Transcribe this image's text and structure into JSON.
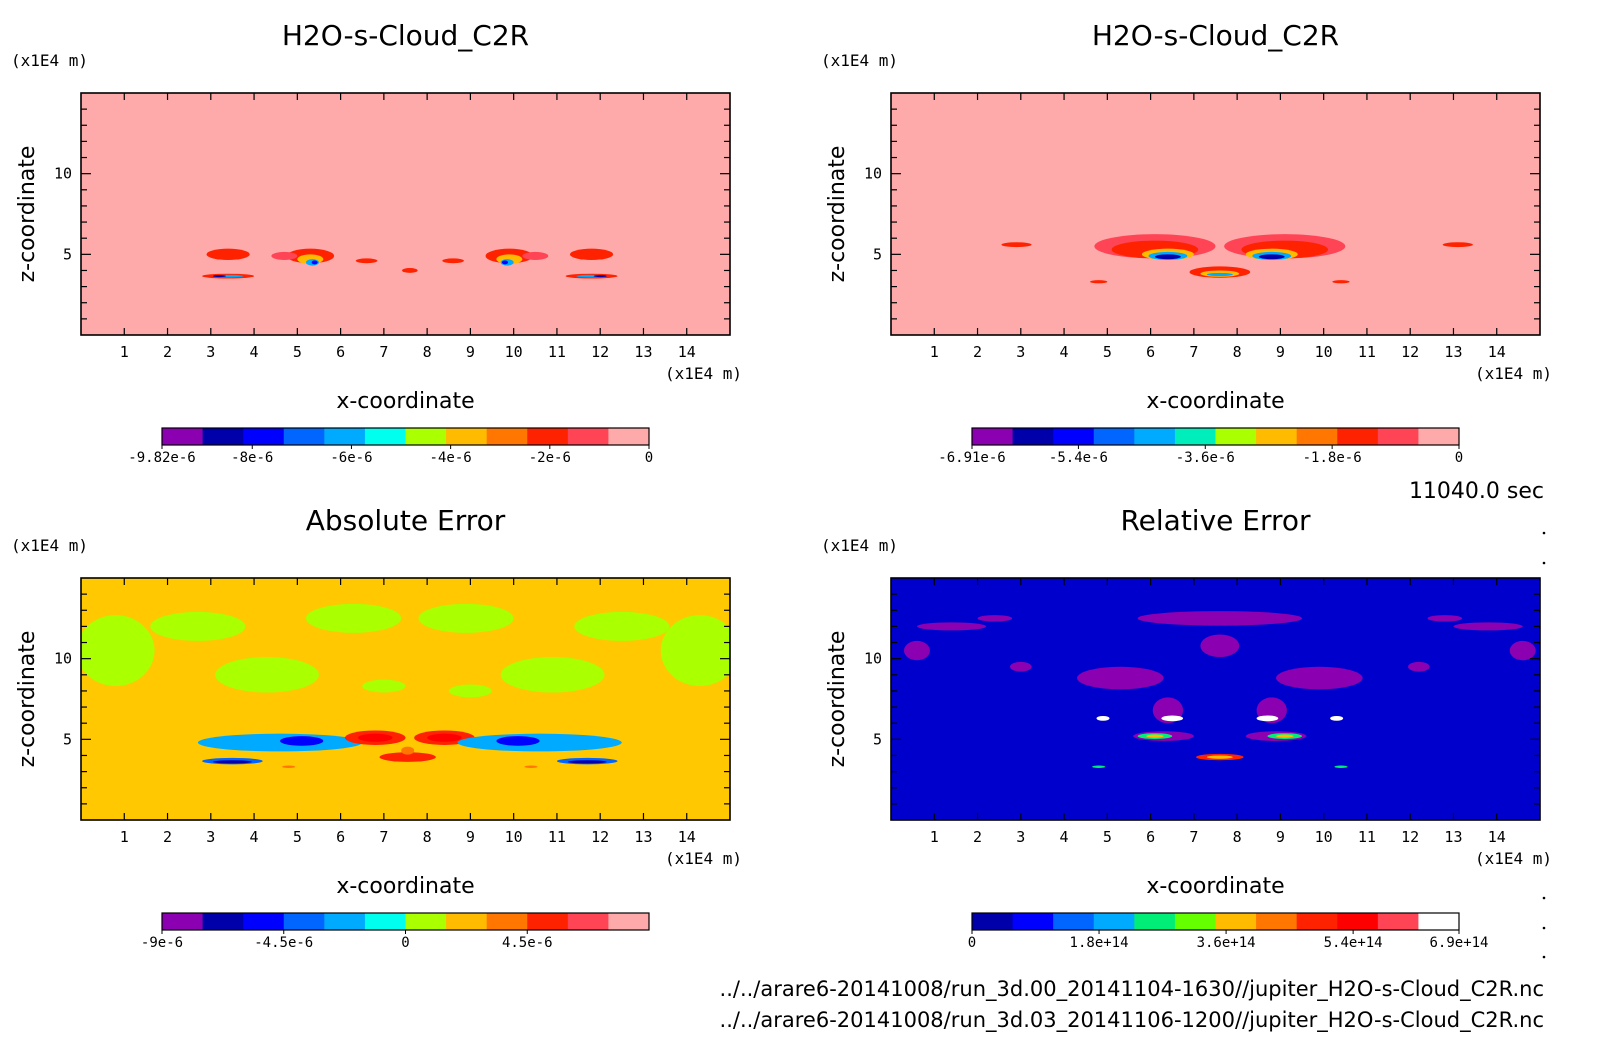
{
  "chart_data": [
    {
      "type": "heatmap",
      "title": "H2O-s-Cloud_C2R",
      "xlabel": "x-coordinate",
      "ylabel": "z-coordinate",
      "x_unit": "(x1E4 m)",
      "y_unit": "(x1E4 m)",
      "xlim": [
        0,
        15
      ],
      "ylim": [
        0,
        15
      ],
      "x_ticks": [
        "1",
        "2",
        "3",
        "4",
        "5",
        "6",
        "7",
        "8",
        "9",
        "10",
        "11",
        "12",
        "13",
        "14"
      ],
      "y_ticks": [
        "5",
        "10"
      ],
      "background": "#FFAAAA",
      "colorbar": {
        "colors": [
          "#8B00B0",
          "#0000AA",
          "#0000FF",
          "#0066FF",
          "#00AAFF",
          "#00FFEE",
          "#AAFF00",
          "#FFBB00",
          "#FF7700",
          "#FF2200",
          "#FF4455",
          "#FFAAAA"
        ],
        "labels": [
          {
            "text": "-9.82e-6",
            "value": -9.82e-06
          },
          {
            "text": "-8e-6",
            "value": -8e-06
          },
          {
            "text": "-6e-6",
            "value": -6e-06
          },
          {
            "text": "-4e-6",
            "value": -4e-06
          },
          {
            "text": "-2e-6",
            "value": -2e-06
          },
          {
            "text": "0",
            "value": 0
          }
        ],
        "range": [
          -9.82e-06,
          0
        ]
      },
      "blobs": [
        {
          "x": 3.4,
          "z": 5.0,
          "rx": 0.5,
          "rz": 0.35,
          "c": "#FF2200"
        },
        {
          "x": 3.4,
          "z": 3.65,
          "rx": 0.6,
          "rz": 0.15,
          "c": "#FF2200"
        },
        {
          "x": 3.4,
          "z": 3.65,
          "rx": 0.35,
          "rz": 0.08,
          "c": "#00AAFF"
        },
        {
          "x": 3.2,
          "z": 3.65,
          "rx": 0.15,
          "rz": 0.06,
          "c": "#0000AA"
        },
        {
          "x": 5.3,
          "z": 4.9,
          "rx": 0.55,
          "rz": 0.45,
          "c": "#FF2200"
        },
        {
          "x": 4.7,
          "z": 4.9,
          "rx": 0.3,
          "rz": 0.25,
          "c": "#FF4455"
        },
        {
          "x": 5.3,
          "z": 4.7,
          "rx": 0.3,
          "rz": 0.3,
          "c": "#FFBB00"
        },
        {
          "x": 5.35,
          "z": 4.5,
          "rx": 0.15,
          "rz": 0.2,
          "c": "#00AAFF"
        },
        {
          "x": 5.4,
          "z": 4.5,
          "rx": 0.07,
          "rz": 0.12,
          "c": "#0000FF"
        },
        {
          "x": 6.6,
          "z": 4.6,
          "rx": 0.25,
          "rz": 0.15,
          "c": "#FF2200"
        },
        {
          "x": 7.6,
          "z": 4.0,
          "rx": 0.18,
          "rz": 0.15,
          "c": "#FF2200"
        },
        {
          "x": 8.6,
          "z": 4.6,
          "rx": 0.25,
          "rz": 0.15,
          "c": "#FF2200"
        },
        {
          "x": 9.9,
          "z": 4.9,
          "rx": 0.55,
          "rz": 0.45,
          "c": "#FF2200"
        },
        {
          "x": 10.5,
          "z": 4.9,
          "rx": 0.3,
          "rz": 0.25,
          "c": "#FF4455"
        },
        {
          "x": 9.9,
          "z": 4.7,
          "rx": 0.3,
          "rz": 0.3,
          "c": "#FFBB00"
        },
        {
          "x": 9.85,
          "z": 4.5,
          "rx": 0.15,
          "rz": 0.2,
          "c": "#00AAFF"
        },
        {
          "x": 9.8,
          "z": 4.5,
          "rx": 0.07,
          "rz": 0.12,
          "c": "#0000FF"
        },
        {
          "x": 11.8,
          "z": 5.0,
          "rx": 0.5,
          "rz": 0.35,
          "c": "#FF2200"
        },
        {
          "x": 11.8,
          "z": 3.65,
          "rx": 0.6,
          "rz": 0.15,
          "c": "#FF2200"
        },
        {
          "x": 11.8,
          "z": 3.65,
          "rx": 0.35,
          "rz": 0.08,
          "c": "#00AAFF"
        },
        {
          "x": 12.0,
          "z": 3.65,
          "rx": 0.15,
          "rz": 0.06,
          "c": "#0000AA"
        }
      ]
    },
    {
      "type": "heatmap",
      "title": "H2O-s-Cloud_C2R",
      "xlabel": "x-coordinate",
      "ylabel": "z-coordinate",
      "x_unit": "(x1E4 m)",
      "y_unit": "(x1E4 m)",
      "xlim": [
        0,
        15
      ],
      "ylim": [
        0,
        15
      ],
      "x_ticks": [
        "1",
        "2",
        "3",
        "4",
        "5",
        "6",
        "7",
        "8",
        "9",
        "10",
        "11",
        "12",
        "13",
        "14"
      ],
      "y_ticks": [
        "5",
        "10"
      ],
      "background": "#FFAAAA",
      "colorbar": {
        "colors": [
          "#8B00B0",
          "#0000AA",
          "#0000FF",
          "#0066FF",
          "#00AAFF",
          "#00EEBB",
          "#AAFF00",
          "#FFBB00",
          "#FF7700",
          "#FF2200",
          "#FF4455",
          "#FFAAAA"
        ],
        "labels": [
          {
            "text": "-6.91e-6",
            "value": -6.91e-06
          },
          {
            "text": "-5.4e-6",
            "value": -5.4e-06
          },
          {
            "text": "-3.6e-6",
            "value": -3.6e-06
          },
          {
            "text": "-1.8e-6",
            "value": -1.8e-06
          },
          {
            "text": "0",
            "value": 0
          }
        ],
        "range": [
          -6.91e-06,
          0
        ]
      },
      "blobs": [
        {
          "x": 2.9,
          "z": 5.6,
          "rx": 0.35,
          "rz": 0.15,
          "c": "#FF2200"
        },
        {
          "x": 6.1,
          "z": 5.5,
          "rx": 1.4,
          "rz": 0.75,
          "c": "#FF4455"
        },
        {
          "x": 6.1,
          "z": 5.3,
          "rx": 1.0,
          "rz": 0.55,
          "c": "#FF2200"
        },
        {
          "x": 6.4,
          "z": 5.0,
          "rx": 0.6,
          "rz": 0.35,
          "c": "#FFBB00"
        },
        {
          "x": 6.4,
          "z": 4.9,
          "rx": 0.45,
          "rz": 0.25,
          "c": "#00AAFF"
        },
        {
          "x": 6.4,
          "z": 4.85,
          "rx": 0.3,
          "rz": 0.15,
          "c": "#0000AA"
        },
        {
          "x": 9.1,
          "z": 5.5,
          "rx": 1.4,
          "rz": 0.75,
          "c": "#FF4455"
        },
        {
          "x": 9.1,
          "z": 5.3,
          "rx": 1.0,
          "rz": 0.55,
          "c": "#FF2200"
        },
        {
          "x": 8.8,
          "z": 5.0,
          "rx": 0.6,
          "rz": 0.35,
          "c": "#FFBB00"
        },
        {
          "x": 8.8,
          "z": 4.9,
          "rx": 0.45,
          "rz": 0.25,
          "c": "#00AAFF"
        },
        {
          "x": 8.8,
          "z": 4.85,
          "rx": 0.3,
          "rz": 0.15,
          "c": "#0000AA"
        },
        {
          "x": 7.6,
          "z": 3.9,
          "rx": 0.7,
          "rz": 0.35,
          "c": "#FF2200"
        },
        {
          "x": 7.6,
          "z": 3.8,
          "rx": 0.45,
          "rz": 0.2,
          "c": "#FFBB00"
        },
        {
          "x": 7.6,
          "z": 3.75,
          "rx": 0.3,
          "rz": 0.1,
          "c": "#00AAFF"
        },
        {
          "x": 4.8,
          "z": 3.3,
          "rx": 0.2,
          "rz": 0.1,
          "c": "#FF2200"
        },
        {
          "x": 10.4,
          "z": 3.3,
          "rx": 0.2,
          "rz": 0.1,
          "c": "#FF2200"
        },
        {
          "x": 13.1,
          "z": 5.6,
          "rx": 0.35,
          "rz": 0.15,
          "c": "#FF2200"
        }
      ]
    },
    {
      "type": "heatmap",
      "title": "Absolute Error",
      "xlabel": "x-coordinate",
      "ylabel": "z-coordinate",
      "x_unit": "(x1E4 m)",
      "y_unit": "(x1E4 m)",
      "xlim": [
        0,
        15
      ],
      "ylim": [
        0,
        15
      ],
      "x_ticks": [
        "1",
        "2",
        "3",
        "4",
        "5",
        "6",
        "7",
        "8",
        "9",
        "10",
        "11",
        "12",
        "13",
        "14"
      ],
      "y_ticks": [
        "5",
        "10"
      ],
      "background": "#FFC800",
      "colorbar": {
        "colors": [
          "#8B00B0",
          "#0000AA",
          "#0000FF",
          "#0066FF",
          "#00AAFF",
          "#00FFEE",
          "#AAFF00",
          "#FFBB00",
          "#FF7700",
          "#FF2200",
          "#FF4455",
          "#FFAAAA"
        ],
        "labels": [
          {
            "text": "-9e-6",
            "value": -9e-06
          },
          {
            "text": "-4.5e-6",
            "value": -4.5e-06
          },
          {
            "text": "0",
            "value": 0
          },
          {
            "text": "4.5e-6",
            "value": 4.5e-06
          }
        ],
        "range": [
          -9e-06,
          9e-06
        ]
      },
      "blobs": [
        {
          "x": 0.8,
          "z": 10.5,
          "rx": 0.9,
          "rz": 2.2,
          "c": "#AAFF00"
        },
        {
          "x": 14.3,
          "z": 10.5,
          "rx": 0.9,
          "rz": 2.2,
          "c": "#AAFF00"
        },
        {
          "x": 2.7,
          "z": 12.0,
          "rx": 1.1,
          "rz": 0.9,
          "c": "#AAFF00"
        },
        {
          "x": 12.5,
          "z": 12.0,
          "rx": 1.1,
          "rz": 0.9,
          "c": "#AAFF00"
        },
        {
          "x": 6.3,
          "z": 12.5,
          "rx": 1.1,
          "rz": 0.9,
          "c": "#AAFF00"
        },
        {
          "x": 8.9,
          "z": 12.5,
          "rx": 1.1,
          "rz": 0.9,
          "c": "#AAFF00"
        },
        {
          "x": 4.3,
          "z": 9.0,
          "rx": 1.2,
          "rz": 1.1,
          "c": "#AAFF00"
        },
        {
          "x": 10.9,
          "z": 9.0,
          "rx": 1.2,
          "rz": 1.1,
          "c": "#AAFF00"
        },
        {
          "x": 7.0,
          "z": 8.3,
          "rx": 0.5,
          "rz": 0.4,
          "c": "#AAFF00"
        },
        {
          "x": 9.0,
          "z": 8.0,
          "rx": 0.5,
          "rz": 0.4,
          "c": "#AAFF00"
        },
        {
          "x": 4.6,
          "z": 4.8,
          "rx": 1.9,
          "rz": 0.55,
          "c": "#00AAFF"
        },
        {
          "x": 3.5,
          "z": 3.65,
          "rx": 0.7,
          "rz": 0.2,
          "c": "#0066FF"
        },
        {
          "x": 3.5,
          "z": 3.6,
          "rx": 0.45,
          "rz": 0.1,
          "c": "#0000AA"
        },
        {
          "x": 5.1,
          "z": 4.9,
          "rx": 0.5,
          "rz": 0.3,
          "c": "#0000FF"
        },
        {
          "x": 6.8,
          "z": 5.1,
          "rx": 0.7,
          "rz": 0.45,
          "c": "#FF2200"
        },
        {
          "x": 6.8,
          "z": 5.1,
          "rx": 0.4,
          "rz": 0.25,
          "c": "#FF0000"
        },
        {
          "x": 7.55,
          "z": 3.9,
          "rx": 0.65,
          "rz": 0.3,
          "c": "#FF2200"
        },
        {
          "x": 7.55,
          "z": 4.3,
          "rx": 0.15,
          "rz": 0.25,
          "c": "#FF7700"
        },
        {
          "x": 8.4,
          "z": 5.1,
          "rx": 0.7,
          "rz": 0.45,
          "c": "#FF2200"
        },
        {
          "x": 8.4,
          "z": 5.1,
          "rx": 0.4,
          "rz": 0.25,
          "c": "#FF0000"
        },
        {
          "x": 10.6,
          "z": 4.8,
          "rx": 1.9,
          "rz": 0.55,
          "c": "#00AAFF"
        },
        {
          "x": 10.1,
          "z": 4.9,
          "rx": 0.5,
          "rz": 0.3,
          "c": "#0000FF"
        },
        {
          "x": 11.7,
          "z": 3.65,
          "rx": 0.7,
          "rz": 0.2,
          "c": "#0066FF"
        },
        {
          "x": 11.7,
          "z": 3.6,
          "rx": 0.45,
          "rz": 0.1,
          "c": "#0000AA"
        },
        {
          "x": 4.8,
          "z": 3.3,
          "rx": 0.15,
          "rz": 0.08,
          "c": "#FF7700"
        },
        {
          "x": 10.4,
          "z": 3.3,
          "rx": 0.15,
          "rz": 0.08,
          "c": "#FF7700"
        }
      ]
    },
    {
      "type": "heatmap",
      "title": "Relative Error",
      "xlabel": "x-coordinate",
      "ylabel": "z-coordinate",
      "x_unit": "(x1E4 m)",
      "y_unit": "(x1E4 m)",
      "xlim": [
        0,
        15
      ],
      "ylim": [
        0,
        15
      ],
      "x_ticks": [
        "1",
        "2",
        "3",
        "4",
        "5",
        "6",
        "7",
        "8",
        "9",
        "10",
        "11",
        "12",
        "13",
        "14"
      ],
      "y_ticks": [
        "5",
        "10"
      ],
      "background": "#0000CC",
      "colorbar": {
        "colors": [
          "#0000AA",
          "#0000FF",
          "#0066FF",
          "#00AAFF",
          "#00EE77",
          "#66FF00",
          "#FFBB00",
          "#FF7700",
          "#FF2200",
          "#FF0000",
          "#FF4455",
          "#FFFFFF"
        ],
        "labels": [
          {
            "text": "0",
            "value": 0
          },
          {
            "text": "1.8e+14",
            "value": 180000000000000.0
          },
          {
            "text": "3.6e+14",
            "value": 360000000000000.0
          },
          {
            "text": "5.4e+14",
            "value": 540000000000000.0
          },
          {
            "text": "6.9e+14",
            "value": 690000000000000.0
          }
        ],
        "range": [
          0,
          690000000000000.0
        ]
      },
      "blobs": [
        {
          "x": 1.4,
          "z": 12.0,
          "rx": 0.8,
          "rz": 0.25,
          "c": "#8B00B0"
        },
        {
          "x": 2.4,
          "z": 12.5,
          "rx": 0.4,
          "rz": 0.2,
          "c": "#8B00B0"
        },
        {
          "x": 0.6,
          "z": 10.5,
          "rx": 0.3,
          "rz": 0.6,
          "c": "#8B00B0"
        },
        {
          "x": 13.8,
          "z": 12.0,
          "rx": 0.8,
          "rz": 0.25,
          "c": "#8B00B0"
        },
        {
          "x": 12.8,
          "z": 12.5,
          "rx": 0.4,
          "rz": 0.2,
          "c": "#8B00B0"
        },
        {
          "x": 14.6,
          "z": 10.5,
          "rx": 0.3,
          "rz": 0.6,
          "c": "#8B00B0"
        },
        {
          "x": 7.6,
          "z": 12.5,
          "rx": 1.9,
          "rz": 0.45,
          "c": "#8B00B0"
        },
        {
          "x": 7.6,
          "z": 10.8,
          "rx": 0.45,
          "rz": 0.7,
          "c": "#8B00B0"
        },
        {
          "x": 5.3,
          "z": 8.8,
          "rx": 1.0,
          "rz": 0.7,
          "c": "#8B00B0"
        },
        {
          "x": 9.9,
          "z": 8.8,
          "rx": 1.0,
          "rz": 0.7,
          "c": "#8B00B0"
        },
        {
          "x": 6.4,
          "z": 6.8,
          "rx": 0.35,
          "rz": 0.8,
          "c": "#8B00B0"
        },
        {
          "x": 8.8,
          "z": 6.8,
          "rx": 0.35,
          "rz": 0.8,
          "c": "#8B00B0"
        },
        {
          "x": 3.0,
          "z": 9.5,
          "rx": 0.25,
          "rz": 0.3,
          "c": "#8B00B0"
        },
        {
          "x": 12.2,
          "z": 9.5,
          "rx": 0.25,
          "rz": 0.3,
          "c": "#8B00B0"
        },
        {
          "x": 6.3,
          "z": 5.2,
          "rx": 0.7,
          "rz": 0.3,
          "c": "#8B00B0"
        },
        {
          "x": 8.9,
          "z": 5.2,
          "rx": 0.7,
          "rz": 0.3,
          "c": "#8B00B0"
        },
        {
          "x": 6.1,
          "z": 5.2,
          "rx": 0.4,
          "rz": 0.18,
          "c": "#00EE77"
        },
        {
          "x": 6.1,
          "z": 5.2,
          "rx": 0.2,
          "rz": 0.1,
          "c": "#FFBB00"
        },
        {
          "x": 9.1,
          "z": 5.2,
          "rx": 0.4,
          "rz": 0.18,
          "c": "#00EE77"
        },
        {
          "x": 9.1,
          "z": 5.2,
          "rx": 0.2,
          "rz": 0.1,
          "c": "#FFBB00"
        },
        {
          "x": 7.6,
          "z": 3.9,
          "rx": 0.55,
          "rz": 0.2,
          "c": "#FF2200"
        },
        {
          "x": 7.6,
          "z": 3.9,
          "rx": 0.3,
          "rz": 0.1,
          "c": "#FFBB00"
        },
        {
          "x": 6.5,
          "z": 6.3,
          "rx": 0.25,
          "rz": 0.18,
          "c": "#FFFFFF"
        },
        {
          "x": 8.7,
          "z": 6.3,
          "rx": 0.25,
          "rz": 0.18,
          "c": "#FFFFFF"
        },
        {
          "x": 4.9,
          "z": 6.3,
          "rx": 0.15,
          "rz": 0.15,
          "c": "#FFFFFF"
        },
        {
          "x": 10.3,
          "z": 6.3,
          "rx": 0.15,
          "rz": 0.15,
          "c": "#FFFFFF"
        },
        {
          "x": 4.8,
          "z": 3.3,
          "rx": 0.15,
          "rz": 0.08,
          "c": "#00EE77"
        },
        {
          "x": 10.4,
          "z": 3.3,
          "rx": 0.15,
          "rz": 0.08,
          "c": "#00EE77"
        }
      ]
    }
  ],
  "time_label": "11040.0 sec",
  "file_paths": [
    "../../arare6-20141008/run_3d.00_20141104-1630//jupiter_H2O-s-Cloud_C2R.nc",
    "../../arare6-20141008/run_3d.03_20141106-1200//jupiter_H2O-s-Cloud_C2R.nc"
  ]
}
